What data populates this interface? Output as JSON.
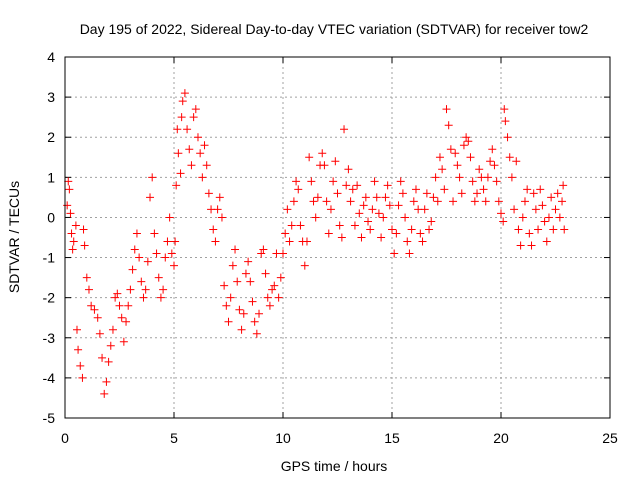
{
  "chart_data": {
    "type": "scatter",
    "title": "Day 195 of 2022, Sidereal Day-to-day VTEC variation (SDTVAR) for receiver tow2",
    "xlabel": "GPS time / hours",
    "ylabel": "SDTVAR / TECUs",
    "xlim": [
      0,
      25
    ],
    "ylim": [
      -5,
      4
    ],
    "xticks": [
      0,
      5,
      10,
      15,
      20,
      25
    ],
    "yticks": [
      -5,
      -4,
      -3,
      -2,
      -1,
      0,
      1,
      2,
      3,
      4
    ],
    "xtick_labels": [
      "0",
      "5",
      "10",
      "15",
      "20",
      "25"
    ],
    "ytick_labels": [
      "-5",
      "-4",
      "-3",
      "-2",
      "-1",
      "0",
      "1",
      "2",
      "3",
      "4"
    ],
    "grid": true,
    "marker": "plus",
    "series": [
      {
        "name": "SDTVAR",
        "color": "#ff0000",
        "points": [
          [
            0.1,
            0.3
          ],
          [
            0.15,
            0.9
          ],
          [
            0.2,
            0.7
          ],
          [
            0.25,
            0.1
          ],
          [
            0.3,
            -0.4
          ],
          [
            0.35,
            -0.8
          ],
          [
            0.4,
            -0.6
          ],
          [
            0.5,
            -0.2
          ],
          [
            0.55,
            -2.8
          ],
          [
            0.6,
            -3.3
          ],
          [
            0.7,
            -3.7
          ],
          [
            0.8,
            -4.0
          ],
          [
            0.85,
            -0.3
          ],
          [
            0.9,
            -0.7
          ],
          [
            1.0,
            -1.5
          ],
          [
            1.1,
            -1.8
          ],
          [
            1.2,
            -2.2
          ],
          [
            1.35,
            -2.3
          ],
          [
            1.5,
            -2.5
          ],
          [
            1.6,
            -2.9
          ],
          [
            1.7,
            -3.5
          ],
          [
            1.8,
            -4.4
          ],
          [
            1.9,
            -4.1
          ],
          [
            2.0,
            -3.6
          ],
          [
            2.1,
            -3.2
          ],
          [
            2.2,
            -2.8
          ],
          [
            2.3,
            -2.0
          ],
          [
            2.4,
            -1.9
          ],
          [
            2.5,
            -2.2
          ],
          [
            2.6,
            -2.5
          ],
          [
            2.7,
            -3.1
          ],
          [
            2.8,
            -2.6
          ],
          [
            2.9,
            -2.2
          ],
          [
            3.0,
            -1.8
          ],
          [
            3.1,
            -1.3
          ],
          [
            3.2,
            -0.8
          ],
          [
            3.3,
            -0.4
          ],
          [
            3.4,
            -1.0
          ],
          [
            3.5,
            -1.6
          ],
          [
            3.6,
            -2.0
          ],
          [
            3.7,
            -1.8
          ],
          [
            3.8,
            -1.1
          ],
          [
            3.9,
            0.5
          ],
          [
            4.0,
            1.0
          ],
          [
            4.1,
            -0.4
          ],
          [
            4.2,
            -0.9
          ],
          [
            4.3,
            -1.5
          ],
          [
            4.4,
            -2.0
          ],
          [
            4.5,
            -1.8
          ],
          [
            4.6,
            -1.0
          ],
          [
            4.7,
            -0.6
          ],
          [
            4.8,
            0.0
          ],
          [
            4.9,
            -0.9
          ],
          [
            5.0,
            -1.2
          ],
          [
            5.05,
            -0.6
          ],
          [
            5.1,
            0.8
          ],
          [
            5.15,
            2.2
          ],
          [
            5.2,
            1.6
          ],
          [
            5.3,
            1.1
          ],
          [
            5.35,
            2.5
          ],
          [
            5.4,
            2.9
          ],
          [
            5.5,
            3.1
          ],
          [
            5.6,
            2.2
          ],
          [
            5.7,
            1.7
          ],
          [
            5.8,
            1.3
          ],
          [
            5.9,
            2.5
          ],
          [
            6.0,
            2.7
          ],
          [
            6.1,
            2.0
          ],
          [
            6.2,
            1.6
          ],
          [
            6.3,
            1.0
          ],
          [
            6.4,
            1.8
          ],
          [
            6.5,
            1.3
          ],
          [
            6.6,
            0.6
          ],
          [
            6.7,
            0.2
          ],
          [
            6.8,
            -0.3
          ],
          [
            6.9,
            -0.6
          ],
          [
            7.0,
            0.2
          ],
          [
            7.1,
            0.5
          ],
          [
            7.2,
            0.0
          ],
          [
            7.3,
            -1.7
          ],
          [
            7.4,
            -2.2
          ],
          [
            7.5,
            -2.6
          ],
          [
            7.6,
            -2.0
          ],
          [
            7.7,
            -1.2
          ],
          [
            7.8,
            -0.8
          ],
          [
            7.9,
            -1.6
          ],
          [
            8.0,
            -2.3
          ],
          [
            8.1,
            -2.8
          ],
          [
            8.2,
            -2.4
          ],
          [
            8.3,
            -1.4
          ],
          [
            8.4,
            -1.1
          ],
          [
            8.5,
            -1.6
          ],
          [
            8.6,
            -2.1
          ],
          [
            8.7,
            -2.6
          ],
          [
            8.8,
            -2.9
          ],
          [
            8.9,
            -2.4
          ],
          [
            9.0,
            -0.9
          ],
          [
            9.1,
            -0.8
          ],
          [
            9.2,
            -1.4
          ],
          [
            9.3,
            -2.0
          ],
          [
            9.4,
            -2.2
          ],
          [
            9.5,
            -1.8
          ],
          [
            9.6,
            -1.7
          ],
          [
            9.7,
            -0.9
          ],
          [
            9.8,
            -2.0
          ],
          [
            9.9,
            -1.5
          ],
          [
            10.0,
            -0.9
          ],
          [
            10.1,
            -0.4
          ],
          [
            10.2,
            0.2
          ],
          [
            10.3,
            -0.6
          ],
          [
            10.4,
            -0.2
          ],
          [
            10.5,
            0.4
          ],
          [
            10.6,
            0.9
          ],
          [
            10.7,
            0.7
          ],
          [
            10.8,
            -0.2
          ],
          [
            10.9,
            -0.6
          ],
          [
            11.0,
            -1.2
          ],
          [
            11.1,
            -0.6
          ],
          [
            11.2,
            1.5
          ],
          [
            11.3,
            0.9
          ],
          [
            11.4,
            0.4
          ],
          [
            11.5,
            0.0
          ],
          [
            11.6,
            0.5
          ],
          [
            11.7,
            1.3
          ],
          [
            11.8,
            1.6
          ],
          [
            11.9,
            1.3
          ],
          [
            12.0,
            0.4
          ],
          [
            12.1,
            -0.4
          ],
          [
            12.2,
            0.2
          ],
          [
            12.3,
            0.9
          ],
          [
            12.4,
            1.4
          ],
          [
            12.5,
            0.6
          ],
          [
            12.6,
            -0.2
          ],
          [
            12.7,
            -0.5
          ],
          [
            12.8,
            2.2
          ],
          [
            12.9,
            0.8
          ],
          [
            13.0,
            1.2
          ],
          [
            13.1,
            0.4
          ],
          [
            13.2,
            0.7
          ],
          [
            13.3,
            -0.2
          ],
          [
            13.4,
            0.8
          ],
          [
            13.5,
            0.1
          ],
          [
            13.6,
            -0.5
          ],
          [
            13.7,
            0.3
          ],
          [
            13.8,
            0.5
          ],
          [
            13.9,
            -0.1
          ],
          [
            14.0,
            -0.3
          ],
          [
            14.1,
            0.2
          ],
          [
            14.2,
            0.9
          ],
          [
            14.3,
            0.5
          ],
          [
            14.4,
            0.1
          ],
          [
            14.5,
            -0.5
          ],
          [
            14.6,
            0.0
          ],
          [
            14.7,
            0.5
          ],
          [
            14.8,
            0.8
          ],
          [
            14.9,
            0.3
          ],
          [
            15.0,
            -0.3
          ],
          [
            15.1,
            -0.9
          ],
          [
            15.2,
            -0.4
          ],
          [
            15.3,
            0.3
          ],
          [
            15.4,
            0.9
          ],
          [
            15.5,
            0.6
          ],
          [
            15.6,
            0.0
          ],
          [
            15.7,
            -0.6
          ],
          [
            15.8,
            -0.9
          ],
          [
            15.9,
            -0.3
          ],
          [
            16.0,
            0.4
          ],
          [
            16.1,
            0.7
          ],
          [
            16.2,
            0.2
          ],
          [
            16.3,
            -0.4
          ],
          [
            16.4,
            -0.6
          ],
          [
            16.5,
            0.2
          ],
          [
            16.6,
            0.6
          ],
          [
            16.7,
            -0.3
          ],
          [
            16.8,
            -0.1
          ],
          [
            16.9,
            0.5
          ],
          [
            17.0,
            1.0
          ],
          [
            17.1,
            0.4
          ],
          [
            17.2,
            1.5
          ],
          [
            17.3,
            1.2
          ],
          [
            17.4,
            0.7
          ],
          [
            17.5,
            2.7
          ],
          [
            17.6,
            2.3
          ],
          [
            17.7,
            1.7
          ],
          [
            17.8,
            0.4
          ],
          [
            17.9,
            1.6
          ],
          [
            18.0,
            1.3
          ],
          [
            18.1,
            1.0
          ],
          [
            18.2,
            0.6
          ],
          [
            18.3,
            1.8
          ],
          [
            18.4,
            2.0
          ],
          [
            18.5,
            1.9
          ],
          [
            18.6,
            1.5
          ],
          [
            18.7,
            0.9
          ],
          [
            18.8,
            0.4
          ],
          [
            18.9,
            0.6
          ],
          [
            19.0,
            1.2
          ],
          [
            19.1,
            1.0
          ],
          [
            19.2,
            0.7
          ],
          [
            19.3,
            0.4
          ],
          [
            19.4,
            1.0
          ],
          [
            19.5,
            1.4
          ],
          [
            19.6,
            1.7
          ],
          [
            19.7,
            1.3
          ],
          [
            19.8,
            0.9
          ],
          [
            19.9,
            0.4
          ],
          [
            20.0,
            0.1
          ],
          [
            20.1,
            -0.1
          ],
          [
            20.15,
            2.7
          ],
          [
            20.2,
            2.4
          ],
          [
            20.3,
            2.0
          ],
          [
            20.4,
            1.5
          ],
          [
            20.5,
            1.0
          ],
          [
            20.6,
            0.2
          ],
          [
            20.7,
            1.4
          ],
          [
            20.8,
            -0.3
          ],
          [
            20.9,
            -0.7
          ],
          [
            21.0,
            0.0
          ],
          [
            21.1,
            0.4
          ],
          [
            21.2,
            0.7
          ],
          [
            21.3,
            -0.4
          ],
          [
            21.4,
            -0.7
          ],
          [
            21.5,
            0.6
          ],
          [
            21.6,
            0.2
          ],
          [
            21.7,
            -0.3
          ],
          [
            21.8,
            0.7
          ],
          [
            21.9,
            0.3
          ],
          [
            22.0,
            -0.1
          ],
          [
            22.1,
            -0.6
          ],
          [
            22.2,
            0.0
          ],
          [
            22.3,
            0.5
          ],
          [
            22.4,
            -0.3
          ],
          [
            22.5,
            0.2
          ],
          [
            22.6,
            0.6
          ],
          [
            22.7,
            0.0
          ],
          [
            22.8,
            0.4
          ],
          [
            22.85,
            0.8
          ],
          [
            22.9,
            -0.3
          ]
        ]
      }
    ]
  }
}
